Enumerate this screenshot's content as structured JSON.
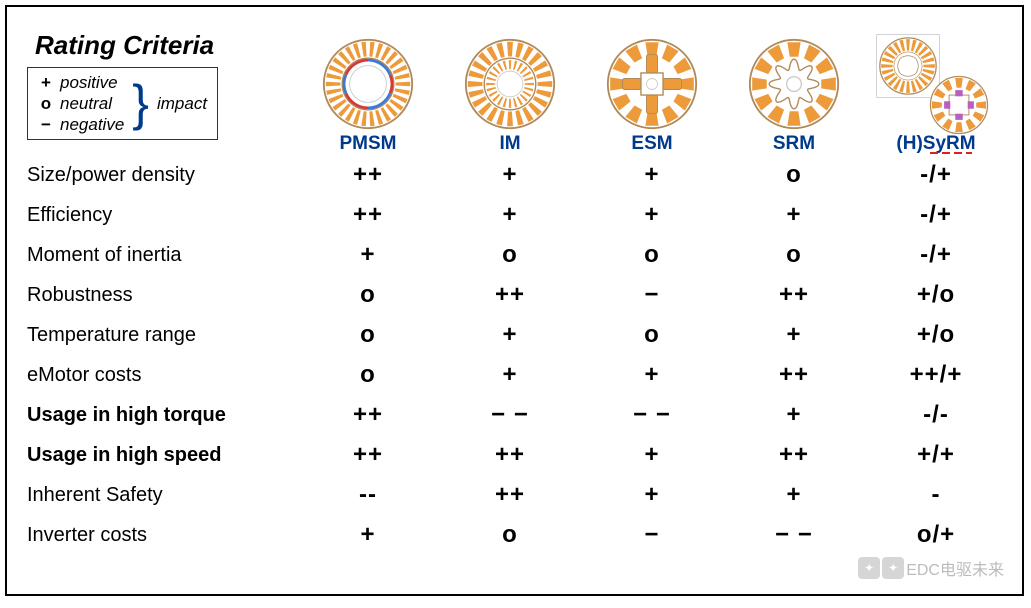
{
  "header": {
    "title": "Rating Criteria",
    "legend": {
      "positive_sym": "+",
      "positive_label": "positive",
      "neutral_sym": "o",
      "neutral_label": "neutral",
      "negative_sym": "−",
      "negative_label": "negative",
      "impact_label": "impact"
    }
  },
  "motors": [
    {
      "key": "pmsm",
      "label": "PMSM",
      "label_color": "#003a8c"
    },
    {
      "key": "im",
      "label": "IM",
      "label_color": "#003a8c"
    },
    {
      "key": "esm",
      "label": "ESM",
      "label_color": "#003a8c"
    },
    {
      "key": "srm",
      "label": "SRM",
      "label_color": "#003a8c"
    },
    {
      "key": "hsyrm",
      "label": "(H)SyRM",
      "label_color": "#003a8c"
    }
  ],
  "criteria": [
    {
      "label": "Size/power density",
      "bold": false,
      "values": [
        "++",
        "+",
        "+",
        "o",
        "-/+"
      ]
    },
    {
      "label": "Efficiency",
      "bold": false,
      "values": [
        "++",
        "+",
        "+",
        "+",
        "-/+"
      ]
    },
    {
      "label": "Moment of inertia",
      "bold": false,
      "values": [
        "+",
        "o",
        "o",
        "o",
        "-/+"
      ]
    },
    {
      "label": "Robustness",
      "bold": false,
      "values": [
        "o",
        "++",
        "−",
        "++",
        "+/o"
      ]
    },
    {
      "label": "Temperature range",
      "bold": false,
      "values": [
        "o",
        "+",
        "o",
        "+",
        "+/o"
      ]
    },
    {
      "label": "eMotor costs",
      "bold": false,
      "values": [
        "o",
        "+",
        "+",
        "++",
        "++/+"
      ]
    },
    {
      "label": "Usage in high torque",
      "bold": true,
      "values": [
        "++",
        "− −",
        "− −",
        "+",
        "-/-"
      ]
    },
    {
      "label": "Usage in high speed",
      "bold": true,
      "values": [
        "++",
        "++",
        "+",
        "++",
        "+/+"
      ]
    },
    {
      "label": "Inherent Safety",
      "bold": false,
      "values": [
        "--",
        "++",
        "+",
        "+",
        "-"
      ]
    },
    {
      "label": "Inverter costs",
      "bold": false,
      "values": [
        "+",
        "o",
        "−",
        "− −",
        "o/+"
      ]
    }
  ],
  "icons": {
    "stator_color": "#ed9a3a",
    "rotor_color_pmsm_blue": "#3b7bd6",
    "rotor_color_pmsm_red": "#d43a3a",
    "outline_color": "#b08a5a",
    "background_color": "#ffffff"
  },
  "styling": {
    "frame_border_color": "#000000",
    "legend_border_color": "#003a8c",
    "header_font_size_pt": 20,
    "label_font_size_pt": 15,
    "value_font_size_pt": 18,
    "value_font_weight": "bold",
    "font_family": "Verdana"
  },
  "watermark": {
    "text": "EDC电驱未来"
  }
}
